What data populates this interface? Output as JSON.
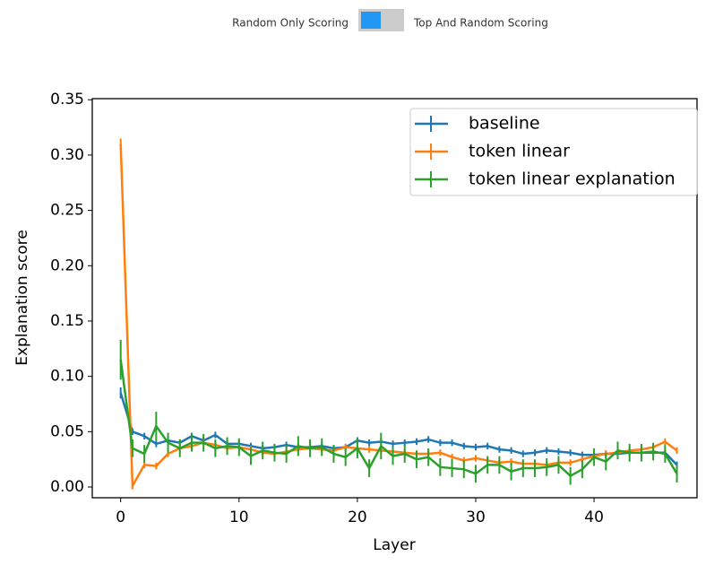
{
  "toggle": {
    "left_label": "Random Only Scoring",
    "right_label": "Top And Random Scoring"
  },
  "chart_data": {
    "type": "line",
    "x_label": "Layer",
    "y_label": "Explanation score",
    "x": [
      0,
      1,
      2,
      3,
      4,
      5,
      6,
      7,
      8,
      9,
      10,
      11,
      12,
      13,
      14,
      15,
      16,
      17,
      18,
      19,
      20,
      21,
      22,
      23,
      24,
      25,
      26,
      27,
      28,
      29,
      30,
      31,
      32,
      33,
      34,
      35,
      36,
      37,
      38,
      39,
      40,
      41,
      42,
      43,
      44,
      45,
      46,
      47
    ],
    "series": [
      {
        "name": "baseline",
        "color": "#1f77b4",
        "values": [
          0.085,
          0.05,
          0.046,
          0.039,
          0.042,
          0.04,
          0.046,
          0.042,
          0.047,
          0.039,
          0.039,
          0.037,
          0.035,
          0.036,
          0.038,
          0.036,
          0.036,
          0.037,
          0.035,
          0.036,
          0.042,
          0.04,
          0.041,
          0.039,
          0.04,
          0.041,
          0.043,
          0.04,
          0.04,
          0.037,
          0.036,
          0.037,
          0.034,
          0.033,
          0.03,
          0.031,
          0.033,
          0.032,
          0.031,
          0.029,
          0.029,
          0.03,
          0.03,
          0.031,
          0.031,
          0.031,
          0.031,
          0.02
        ],
        "errors": [
          0.005,
          0.003,
          0.003,
          0.003,
          0.003,
          0.003,
          0.003,
          0.003,
          0.003,
          0.003,
          0.003,
          0.003,
          0.003,
          0.003,
          0.003,
          0.003,
          0.003,
          0.003,
          0.003,
          0.003,
          0.003,
          0.003,
          0.003,
          0.003,
          0.003,
          0.003,
          0.003,
          0.003,
          0.003,
          0.003,
          0.003,
          0.003,
          0.003,
          0.003,
          0.003,
          0.003,
          0.003,
          0.003,
          0.003,
          0.003,
          0.003,
          0.003,
          0.003,
          0.003,
          0.003,
          0.003,
          0.003,
          0.003
        ]
      },
      {
        "name": "token linear",
        "color": "#ff7f0e",
        "values": [
          0.31,
          0.001,
          0.02,
          0.019,
          0.03,
          0.035,
          0.037,
          0.04,
          0.038,
          0.035,
          0.036,
          0.034,
          0.031,
          0.03,
          0.032,
          0.034,
          0.035,
          0.034,
          0.033,
          0.036,
          0.035,
          0.034,
          0.033,
          0.032,
          0.031,
          0.03,
          0.03,
          0.031,
          0.027,
          0.024,
          0.026,
          0.024,
          0.022,
          0.023,
          0.021,
          0.021,
          0.02,
          0.022,
          0.022,
          0.025,
          0.028,
          0.03,
          0.031,
          0.033,
          0.034,
          0.036,
          0.041,
          0.033
        ],
        "errors": [
          0.005,
          0.003,
          0.003,
          0.003,
          0.003,
          0.003,
          0.003,
          0.003,
          0.003,
          0.003,
          0.003,
          0.003,
          0.003,
          0.003,
          0.003,
          0.003,
          0.003,
          0.003,
          0.003,
          0.003,
          0.003,
          0.003,
          0.003,
          0.003,
          0.003,
          0.003,
          0.003,
          0.003,
          0.003,
          0.003,
          0.003,
          0.003,
          0.003,
          0.003,
          0.003,
          0.003,
          0.003,
          0.003,
          0.003,
          0.003,
          0.003,
          0.003,
          0.003,
          0.003,
          0.003,
          0.003,
          0.003,
          0.003
        ]
      },
      {
        "name": "token linear explanation",
        "color": "#2ca02c",
        "values": [
          0.115,
          0.035,
          0.03,
          0.055,
          0.04,
          0.035,
          0.04,
          0.04,
          0.035,
          0.037,
          0.036,
          0.028,
          0.033,
          0.031,
          0.03,
          0.037,
          0.035,
          0.036,
          0.03,
          0.027,
          0.035,
          0.017,
          0.037,
          0.028,
          0.03,
          0.025,
          0.027,
          0.018,
          0.017,
          0.016,
          0.012,
          0.02,
          0.02,
          0.014,
          0.017,
          0.017,
          0.018,
          0.02,
          0.01,
          0.016,
          0.027,
          0.023,
          0.033,
          0.031,
          0.031,
          0.032,
          0.03,
          0.012
        ],
        "errors": [
          0.018,
          0.008,
          0.008,
          0.013,
          0.009,
          0.008,
          0.008,
          0.008,
          0.008,
          0.008,
          0.008,
          0.008,
          0.008,
          0.008,
          0.008,
          0.009,
          0.008,
          0.008,
          0.008,
          0.008,
          0.009,
          0.008,
          0.012,
          0.008,
          0.008,
          0.008,
          0.008,
          0.008,
          0.008,
          0.008,
          0.008,
          0.008,
          0.008,
          0.008,
          0.008,
          0.008,
          0.008,
          0.008,
          0.008,
          0.008,
          0.008,
          0.008,
          0.008,
          0.008,
          0.008,
          0.008,
          0.008,
          0.008
        ]
      }
    ],
    "xlim": [
      -2.4,
      48.7
    ],
    "ylim": [
      -0.0097,
      0.351
    ],
    "xticks": [
      0,
      10,
      20,
      30,
      40
    ],
    "yticks": [
      {
        "value": 0,
        "label": "0.00"
      },
      0.05,
      {
        "value": 0.1,
        "label": "0.10"
      },
      0.15,
      {
        "value": 0.2,
        "label": "0.20"
      },
      0.25,
      {
        "value": 0.3,
        "label": "0.30"
      },
      0.35
    ],
    "legend": "upper right"
  }
}
